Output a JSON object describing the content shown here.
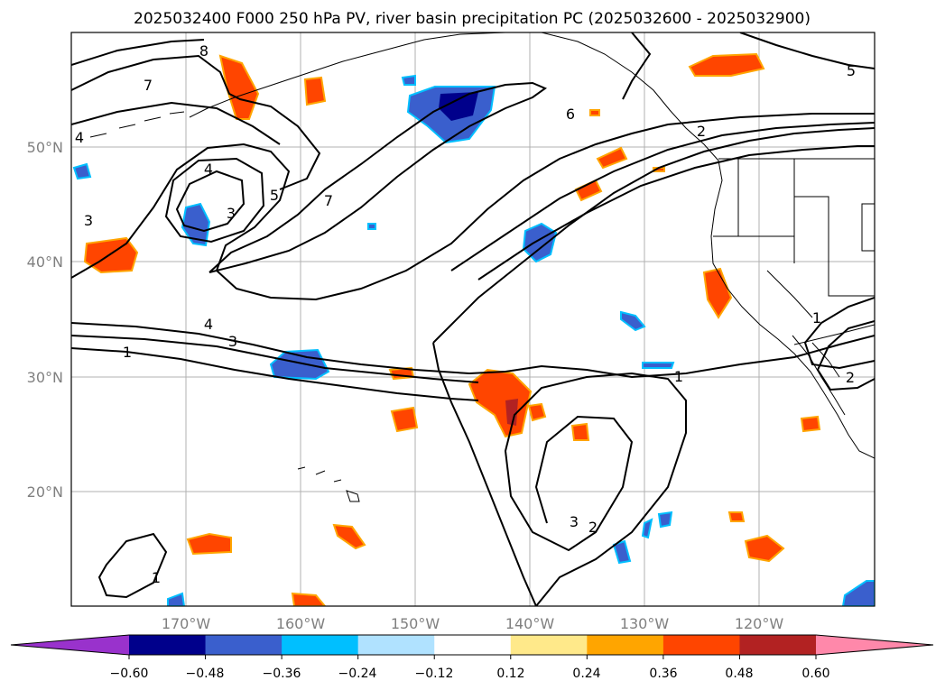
{
  "chart_data": {
    "type": "map-contour",
    "title": "2025032400 F000 250 hPa PV, river basin precipitation PC (2025032600 - 2025032900)",
    "x_tick_labels": [
      "170°W",
      "160°W",
      "150°W",
      "140°W",
      "130°W",
      "120°W"
    ],
    "y_tick_labels": [
      "20°N",
      "30°N",
      "40°N",
      "50°N"
    ],
    "lon_range": [
      -180,
      -110
    ],
    "lat_range": [
      10,
      60
    ],
    "grid": true,
    "colorbar": {
      "orientation": "horizontal",
      "extend": "both",
      "tick_labels": [
        "−0.60",
        "−0.48",
        "−0.36",
        "−0.24",
        "−0.12",
        "0.12",
        "0.24",
        "0.36",
        "0.48",
        "0.60"
      ],
      "levels": [
        -0.6,
        -0.48,
        -0.36,
        -0.24,
        -0.12,
        0.12,
        0.24,
        0.36,
        0.48,
        0.6
      ],
      "colors": [
        "#9932cc",
        "#00008b",
        "#3a5fcd",
        "#00bfff",
        "#b0e2ff",
        "#ffffff",
        "#ffe98a",
        "#ffa500",
        "#ff4500",
        "#b22222",
        "#ff88aa"
      ]
    },
    "contour_labels": [
      "8",
      "7",
      "4",
      "4",
      "3",
      "3",
      "5",
      "7",
      "6",
      "2",
      "5",
      "4",
      "3",
      "1",
      "1",
      "1",
      "2",
      "3",
      "2",
      "1"
    ]
  }
}
